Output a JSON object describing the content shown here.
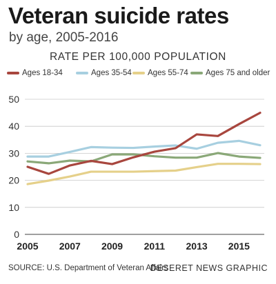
{
  "chart_data": {
    "type": "line",
    "title": "Veteran suicide rates",
    "subtitle": "by age, 2005-2016",
    "ylabel": "RATE PER 100,000 POPULATION",
    "xlabel": "",
    "x": [
      2005,
      2006,
      2007,
      2008,
      2009,
      2010,
      2011,
      2012,
      2013,
      2014,
      2015,
      2016
    ],
    "xlim": [
      2005,
      2016
    ],
    "xticks": [
      "2005",
      "2007",
      "2009",
      "2011",
      "2013",
      "2015"
    ],
    "ylim": [
      0,
      50
    ],
    "yticks": [
      "0",
      "10",
      "20",
      "30",
      "40",
      "50"
    ],
    "grid": true,
    "legend_position": "top",
    "series": [
      {
        "name": "Ages 18-34",
        "color": "#a8463e",
        "values": [
          25.0,
          22.4,
          25.5,
          27.2,
          26.0,
          28.5,
          30.6,
          31.9,
          37.0,
          36.4,
          40.8,
          45.0
        ]
      },
      {
        "name": "Ages 35-54",
        "color": "#a7cfe0",
        "values": [
          28.8,
          28.8,
          30.5,
          32.3,
          32.1,
          32.0,
          32.5,
          32.9,
          31.7,
          33.9,
          34.6,
          33.0
        ]
      },
      {
        "name": "Ages 55-74",
        "color": "#e5d08a",
        "values": [
          18.6,
          19.9,
          21.4,
          23.2,
          23.2,
          23.2,
          23.4,
          23.6,
          24.9,
          26.1,
          26.1,
          26.0
        ]
      },
      {
        "name": "Ages 75 and older",
        "color": "#8aa878",
        "values": [
          27.0,
          26.3,
          27.3,
          27.0,
          29.6,
          29.6,
          28.9,
          28.4,
          28.4,
          30.1,
          28.8,
          28.3
        ]
      }
    ]
  },
  "footer": {
    "source": "SOURCE: U.S. Department of Veteran Affairs",
    "credit": "DESERET NEWS GRAPHIC"
  }
}
